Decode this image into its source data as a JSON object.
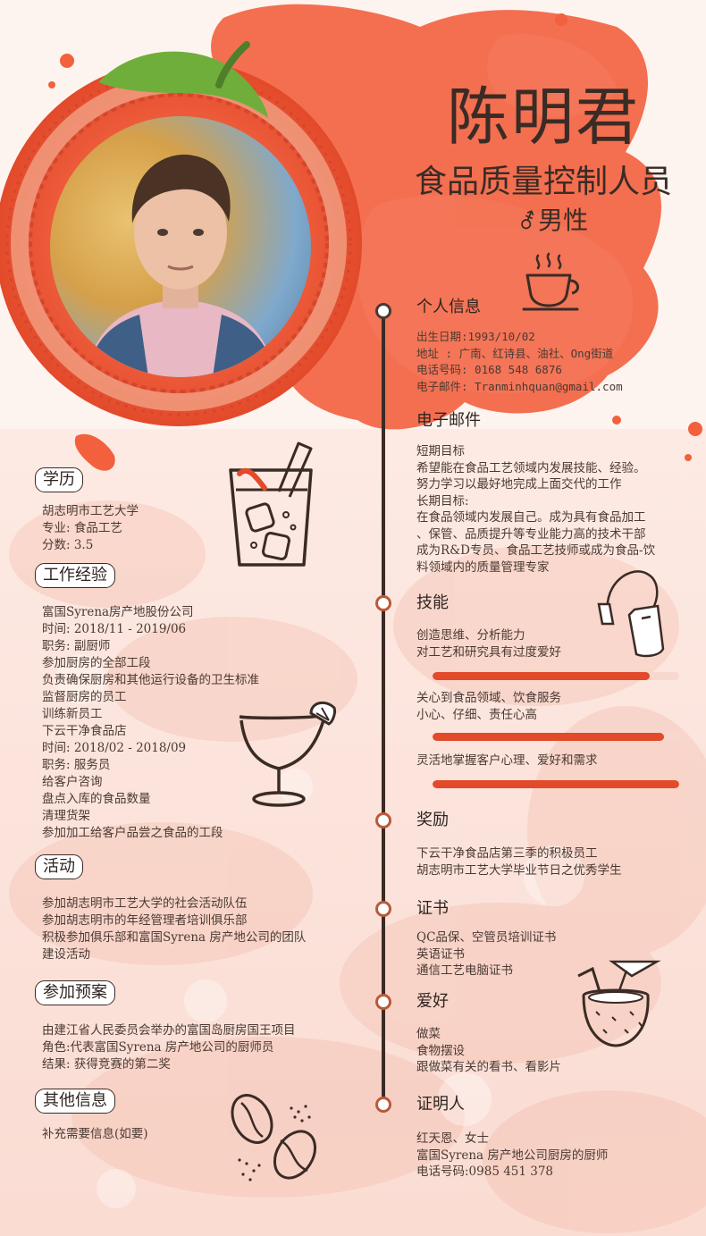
{
  "header": {
    "name": "陈明君",
    "job_title": "食品质量控制人员",
    "gender_symbol": "⚦",
    "gender": "男性"
  },
  "colors": {
    "accent": "#e24a2a",
    "dark": "#3b2b25",
    "watercolor": "#f2603e"
  },
  "right": {
    "personal": {
      "title": "个人信息",
      "lines": [
        "出生日期:1993/10/02",
        "地址    : 广南、红诗县、油社、Ong街道",
        "电话号码:  0168 548 6876",
        "电子邮件: Tranminhquan@gmail.com"
      ]
    },
    "career": {
      "title": "电子邮件",
      "lines": [
        "短期目标",
        "希望能在食品工艺领域内发展技能、经验。",
        "努力学习以最好地完成上面交代的工作",
        "长期目标:",
        "在食品领域内发展自己。成为具有食品加工",
        "、保管、品质提升等专业能力高的技术干部",
        "成为R&D专员、食品工艺技师或成为食品-饮",
        "料领域内的质量管理专家"
      ]
    },
    "skills": {
      "title": "技能",
      "items": [
        {
          "lines": [
            "创造思维、分析能力",
            "对工艺和研究具有过度爱好"
          ],
          "level": 0.88
        },
        {
          "lines": [
            "关心到食品领域、饮食服务",
            "小心、仔细、责任心高"
          ],
          "level": 0.94
        },
        {
          "lines": [
            "灵活地掌握客户心理、爱好和需求"
          ],
          "level": 1.0
        }
      ]
    },
    "awards": {
      "title": "奖励",
      "lines": [
        "下云干净食品店第三季的积极员工",
        "胡志明市工艺大学毕业节日之优秀学生"
      ]
    },
    "certificates": {
      "title": "证书",
      "lines": [
        "QC品保、空管员培训证书",
        "英语证书",
        "通信工艺电脑证书"
      ]
    },
    "hobbies": {
      "title": "爱好",
      "lines": [
        "做菜",
        "食物摆设",
        "跟做菜有关的看书、看影片"
      ]
    },
    "references": {
      "title": "证明人",
      "lines": [
        "红天恩、女士",
        "富国Syrena 房产地公司厨房的厨师",
        "电话号码:0985 451 378"
      ]
    }
  },
  "left": {
    "education": {
      "title": "学历",
      "lines": [
        "胡志明市工艺大学",
        "专业:  食品工艺",
        "分数:  3.5"
      ]
    },
    "experience": {
      "title": "工作经验",
      "lines": [
        "富国Syrena房产地股份公司",
        "时间: 2018/11 - 2019/06",
        "职务: 副厨师",
        "参加厨房的全部工段",
        "负责确保厨房和其他运行设备的卫生标准",
        "监督厨房的员工",
        "训练新员工",
        "下云干净食品店",
        "时间: 2018/02 - 2018/09",
        "职务: 服务员",
        "给客户咨询",
        "盘点入库的食品数量",
        "清理货架",
        "参加加工给客户品尝之食品的工段"
      ]
    },
    "activities": {
      "title": "活动",
      "lines": [
        "参加胡志明市工艺大学的社会活动队伍",
        "参加胡志明市的年经管理者培训俱乐部",
        "积极参加俱乐部和富国Syrena 房产地公司的团队",
        "建设活动"
      ]
    },
    "projects": {
      "title": "参加预案",
      "lines": [
        "由建江省人民委员会举办的富国岛厨房国王项目",
        "角色:代表富国Syrena 房产地公司的厨师员",
        "结果:  获得竞赛的第二奖"
      ]
    },
    "other": {
      "title": "其他信息",
      "lines": [
        "补充需要信息(如要)"
      ]
    }
  },
  "icons": [
    "coffee-cup-icon",
    "tea-bag-icon",
    "iced-drink-icon",
    "margarita-glass-icon",
    "coconut-drink-icon",
    "coffee-beans-icon"
  ]
}
